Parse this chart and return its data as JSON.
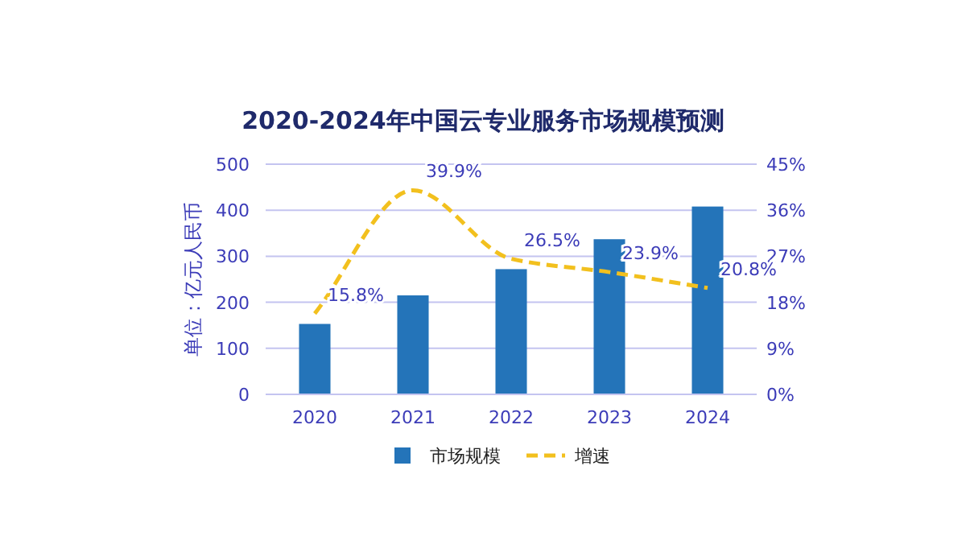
{
  "chart_data": {
    "type": "bar",
    "title": "2020-2024年中国云专业服务市场规模预测",
    "ylabel": "单位：亿元人民币",
    "categories": [
      "2020",
      "2021",
      "2022",
      "2023",
      "2024"
    ],
    "series": [
      {
        "name": "市场规模",
        "color": "#2474b9",
        "values": [
          153,
          215,
          272,
          337,
          408
        ]
      },
      {
        "name": "增速",
        "type": "line",
        "axis": "y2",
        "color": "#f2c01e",
        "line_style": "dashed",
        "marker": "none",
        "values": [
          15.8,
          39.9,
          26.5,
          23.9,
          20.8
        ],
        "value_labels": [
          "15.8%",
          "39.9%",
          "26.5%",
          "23.9%",
          "20.8%"
        ]
      }
    ],
    "ylim": [
      0,
      500
    ],
    "yticks": [
      0,
      100,
      200,
      300,
      400,
      500
    ],
    "y2lim": [
      0,
      45
    ],
    "y2ticks": [
      {
        "value": 0,
        "label": "0%"
      },
      {
        "value": 9,
        "label": "9%"
      },
      {
        "value": 18,
        "label": "18%"
      },
      {
        "value": 27,
        "label": "27%"
      },
      {
        "value": 36,
        "label": "36%"
      },
      {
        "value": 45,
        "label": "45%"
      }
    ],
    "grid": "y",
    "legend": "bottom"
  }
}
